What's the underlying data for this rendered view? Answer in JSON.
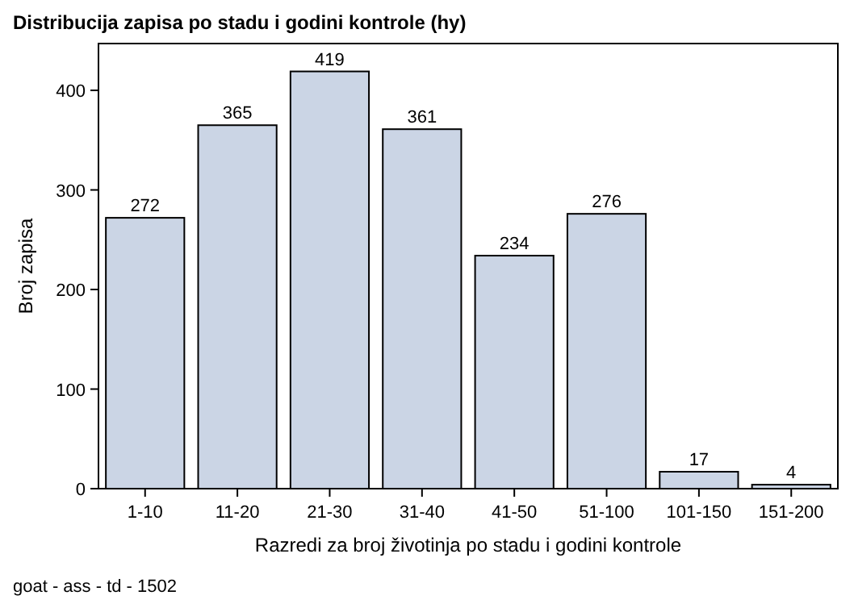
{
  "chart_data": {
    "type": "bar",
    "title": "Distribucija zapisa po stadu i godini kontrole (hy)",
    "xlabel": "Razredi za broj životinja po stadu i godini kontrole",
    "ylabel": "Broj zapisa",
    "categories": [
      "1-10",
      "11-20",
      "21-30",
      "31-40",
      "41-50",
      "51-100",
      "101-150",
      "151-200"
    ],
    "values": [
      272,
      365,
      419,
      361,
      234,
      276,
      17,
      4
    ],
    "color": "#cbd5e5",
    "data_labels": true,
    "ylim": [
      0,
      447
    ],
    "yticks": [
      0,
      100,
      200,
      300,
      400
    ],
    "grid": false,
    "annotations": [
      "goat - ass - td - 1502"
    ]
  }
}
